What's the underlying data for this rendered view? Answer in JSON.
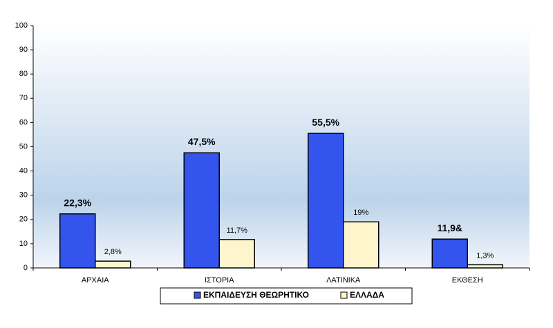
{
  "chart_data": {
    "type": "bar",
    "categories": [
      "ΑΡΧΑΙΑ",
      "ΙΣΤΟΡΙΑ",
      "ΛΑΤΙΝΙΚΑ",
      "ΕΚΘΕΣΗ"
    ],
    "series": [
      {
        "name": "ΕΚΠΑΙΔΕΥΣΗ ΘΕΩΡΗΤΙΚΟ",
        "color": "#3355ee",
        "values": [
          22.3,
          47.5,
          55.5,
          11.9
        ],
        "value_labels": [
          "22,3%",
          "47,5%",
          "55,5%",
          "11,9&"
        ]
      },
      {
        "name": "ΕΛΛΑΔΑ",
        "color": "#fff5cc",
        "values": [
          2.8,
          11.7,
          19,
          1.3
        ],
        "value_labels": [
          "2,8%",
          "11,7%",
          "19%",
          "1,3%"
        ]
      }
    ],
    "ylim": [
      0,
      100
    ],
    "yticks": [
      0,
      10,
      20,
      30,
      40,
      50,
      60,
      70,
      80,
      90,
      100
    ],
    "grid": false
  }
}
